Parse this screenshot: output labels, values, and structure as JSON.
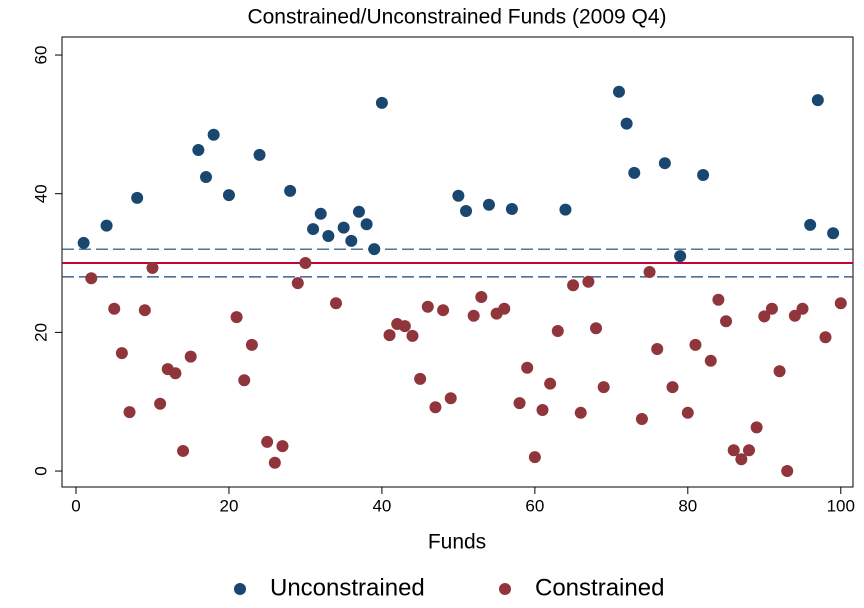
{
  "chart_data": {
    "type": "scatter",
    "title": "Constrained/Unconstrained Funds (2009 Q4)",
    "x_label": "Funds",
    "xlim": [
      -1.83,
      101.6
    ],
    "ylim": [
      -2.3,
      62.6
    ],
    "xticks": [
      0,
      20,
      40,
      60,
      80,
      100
    ],
    "yticks": [
      0,
      20,
      40,
      60
    ],
    "grid": false,
    "legend": "bottom",
    "reference_lines": [
      {
        "value": 32,
        "color": "#1a476f",
        "style": "dashed"
      },
      {
        "value": 30,
        "color": "#c10534",
        "style": "solid"
      },
      {
        "value": 28,
        "color": "#1a476f",
        "style": "dashed"
      }
    ],
    "series": [
      {
        "name": "Unconstrained",
        "color": "#1a476f",
        "x": [
          1,
          4,
          8,
          16,
          17,
          18,
          20,
          24,
          28,
          31,
          32,
          33,
          35,
          36,
          37,
          38,
          39,
          40,
          50,
          51,
          54,
          57,
          64,
          71,
          72,
          73,
          77,
          79,
          82,
          96,
          97,
          99
        ],
        "values": [
          32.9,
          35.4,
          39.4,
          46.3,
          42.4,
          48.5,
          39.8,
          45.6,
          40.4,
          34.9,
          37.1,
          33.9,
          35.1,
          33.2,
          37.4,
          35.6,
          32.0,
          53.1,
          39.7,
          37.5,
          38.4,
          37.8,
          37.7,
          54.7,
          50.1,
          43.0,
          44.4,
          31.0,
          42.7,
          35.5,
          53.5,
          34.3
        ]
      },
      {
        "name": "Constrained",
        "color": "#90353b",
        "x": [
          2,
          5,
          6,
          7,
          9,
          10,
          11,
          12,
          13,
          14,
          15,
          21,
          22,
          23,
          25,
          26,
          27,
          29,
          30,
          34,
          41,
          42,
          43,
          44,
          45,
          46,
          47,
          48,
          49,
          52,
          53,
          55,
          56,
          58,
          59,
          60,
          61,
          62,
          63,
          65,
          66,
          67,
          68,
          69,
          74,
          75,
          76,
          78,
          80,
          81,
          83,
          84,
          85,
          86,
          87,
          88,
          89,
          90,
          91,
          92,
          93,
          94,
          95,
          98,
          100
        ],
        "values": [
          27.8,
          23.4,
          17.0,
          8.5,
          23.2,
          29.3,
          9.7,
          14.7,
          14.1,
          2.9,
          16.5,
          22.2,
          13.1,
          18.2,
          4.2,
          1.2,
          3.6,
          27.1,
          30.0,
          24.2,
          19.6,
          21.2,
          20.9,
          19.5,
          13.3,
          23.7,
          9.2,
          23.2,
          10.5,
          22.4,
          25.1,
          22.7,
          23.4,
          9.8,
          14.9,
          2.0,
          8.8,
          12.6,
          20.2,
          26.8,
          8.4,
          27.3,
          20.6,
          12.1,
          7.5,
          28.7,
          17.6,
          12.1,
          8.4,
          18.2,
          15.9,
          24.7,
          21.6,
          3.0,
          1.7,
          3.0,
          6.3,
          22.3,
          23.4,
          14.4,
          0.0,
          22.4,
          23.4,
          19.3,
          24.2
        ]
      }
    ]
  }
}
